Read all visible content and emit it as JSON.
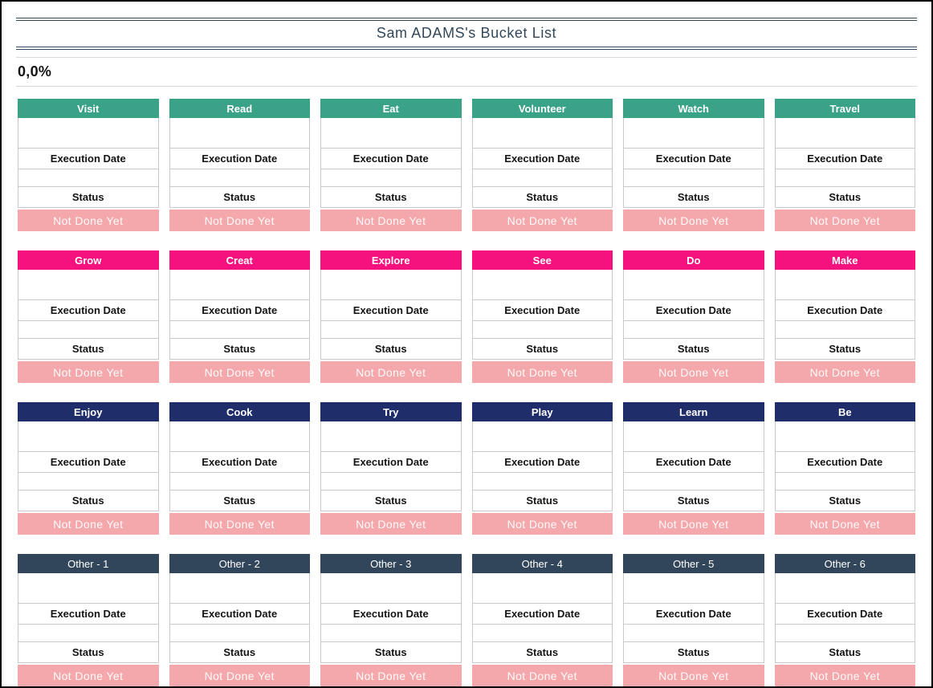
{
  "page": {
    "title": "Sam ADAMS's Bucket List",
    "progress": "0,0%"
  },
  "card_labels": {
    "execution_date": "Execution Date",
    "status": "Status",
    "status_value": "Not Done Yet"
  },
  "colors": {
    "teal": "#3AA287",
    "magenta": "#F5117E",
    "navy": "#1F2D6B",
    "slate": "#31465A",
    "status_bar": "#F5A8AB",
    "title_line": "#33475B"
  },
  "rows": [
    {
      "theme": "teal",
      "cards": [
        "Visit",
        "Read",
        "Eat",
        "Volunteer",
        "Watch",
        "Travel"
      ]
    },
    {
      "theme": "magenta",
      "cards": [
        "Grow",
        "Creat",
        "Explore",
        "See",
        "Do",
        "Make"
      ]
    },
    {
      "theme": "navy",
      "cards": [
        "Enjoy",
        "Cook",
        "Try",
        "Play",
        "Learn",
        "Be"
      ]
    },
    {
      "theme": "slate",
      "cards": [
        "Other - 1",
        "Other - 2",
        "Other - 3",
        "Other - 4",
        "Other - 5",
        "Other - 6"
      ]
    }
  ]
}
